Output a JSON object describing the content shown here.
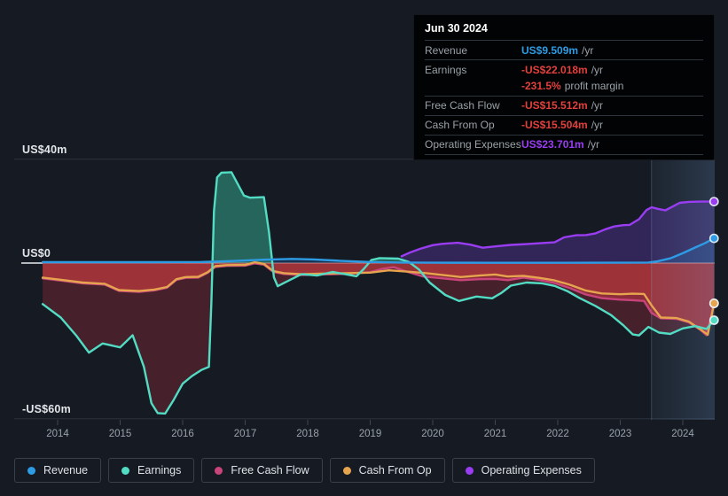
{
  "colors": {
    "revenue": "#2e9ce5",
    "earnings": "#52dcc4",
    "free_cash_flow": "#c8447a",
    "cash_from_op": "#e6a44f",
    "operating_expenses": "#9a3df2",
    "negative": "#e2403d"
  },
  "tooltip": {
    "date": "Jun 30 2024",
    "rows": [
      {
        "label": "Revenue",
        "value": "US$9.509m",
        "suffix": "/yr"
      },
      {
        "label": "Earnings",
        "value": "-US$22.018m",
        "suffix": "/yr"
      },
      {
        "label": "",
        "value": "-231.5%",
        "suffix": "profit margin"
      },
      {
        "label": "Free Cash Flow",
        "value": "-US$15.512m",
        "suffix": "/yr"
      },
      {
        "label": "Cash From Op",
        "value": "-US$15.504m",
        "suffix": "/yr"
      },
      {
        "label": "Operating Expenses",
        "value": "US$23.701m",
        "suffix": "/yr"
      }
    ]
  },
  "legend": {
    "items": [
      {
        "label": "Revenue",
        "color_key": "revenue"
      },
      {
        "label": "Earnings",
        "color_key": "earnings"
      },
      {
        "label": "Free Cash Flow",
        "color_key": "free_cash_flow"
      },
      {
        "label": "Cash From Op",
        "color_key": "cash_from_op"
      },
      {
        "label": "Operating Expenses",
        "color_key": "operating_expenses"
      }
    ]
  },
  "chart_data": {
    "type": "line",
    "unit": "US$ millions per year",
    "x_range": [
      2013.76,
      2024.5
    ],
    "y_range": [
      -60,
      40
    ],
    "x_ticks": [
      2014,
      2015,
      2016,
      2017,
      2018,
      2019,
      2020,
      2021,
      2022,
      2023,
      2024
    ],
    "y_gridlines": [
      {
        "label": "US$40m",
        "value": 40
      },
      {
        "label": "US$0",
        "value": 0
      },
      {
        "label": "-US$60m",
        "value": -60
      }
    ],
    "highlight_band": {
      "from": 2023.5,
      "to": 2024.55
    },
    "fill_order": [
      "operating_expenses",
      "revenue",
      "earnings",
      "free_cash_flow",
      "cash_from_op"
    ],
    "stroke_order": [
      "free_cash_flow",
      "cash_from_op",
      "earnings",
      "operating_expenses",
      "revenue"
    ],
    "end_markers": [
      "free_cash_flow",
      "cash_from_op",
      "earnings",
      "operating_expenses",
      "revenue"
    ],
    "series": [
      {
        "id": "revenue",
        "name": "Revenue",
        "color_key": "revenue",
        "fill_above": "rgba(32,84,146,0.42)",
        "fill_below": null,
        "points": [
          [
            2013.76,
            0.35
          ],
          [
            2014.5,
            0.35
          ],
          [
            2015.5,
            0.35
          ],
          [
            2016.3,
            0.4
          ],
          [
            2016.8,
            0.8
          ],
          [
            2017.3,
            1.3
          ],
          [
            2017.75,
            1.6
          ],
          [
            2018.1,
            1.4
          ],
          [
            2018.5,
            0.9
          ],
          [
            2019.0,
            0.4
          ],
          [
            2019.5,
            0.2
          ],
          [
            2020.0,
            0.12
          ],
          [
            2021.0,
            0.1
          ],
          [
            2022.0,
            0.1
          ],
          [
            2023.0,
            0.12
          ],
          [
            2023.45,
            0.2
          ],
          [
            2023.6,
            0.7
          ],
          [
            2023.8,
            1.8
          ],
          [
            2024.0,
            3.8
          ],
          [
            2024.2,
            6.0
          ],
          [
            2024.35,
            7.6
          ],
          [
            2024.5,
            9.509
          ]
        ]
      },
      {
        "id": "earnings",
        "name": "Earnings",
        "color_key": "earnings",
        "fill_above": "rgba(38,104,94,0.96)",
        "fill_below": "rgba(85,34,46,0.78)",
        "points": [
          [
            2013.76,
            -15.8
          ],
          [
            2014.05,
            -21
          ],
          [
            2014.3,
            -28
          ],
          [
            2014.5,
            -34.5
          ],
          [
            2014.72,
            -31
          ],
          [
            2015.0,
            -32.5
          ],
          [
            2015.2,
            -27.8
          ],
          [
            2015.38,
            -40
          ],
          [
            2015.5,
            -54
          ],
          [
            2015.6,
            -57.8
          ],
          [
            2015.72,
            -58
          ],
          [
            2015.85,
            -53
          ],
          [
            2016.0,
            -46.5
          ],
          [
            2016.15,
            -43.5
          ],
          [
            2016.3,
            -41.2
          ],
          [
            2016.42,
            -40
          ],
          [
            2016.46,
            -15
          ],
          [
            2016.5,
            20
          ],
          [
            2016.55,
            33
          ],
          [
            2016.62,
            34.8
          ],
          [
            2016.78,
            35
          ],
          [
            2016.88,
            30.5
          ],
          [
            2016.98,
            26
          ],
          [
            2017.08,
            25.2
          ],
          [
            2017.3,
            25.4
          ],
          [
            2017.38,
            12
          ],
          [
            2017.46,
            -5.5
          ],
          [
            2017.52,
            -8.9
          ],
          [
            2017.65,
            -7.3
          ],
          [
            2017.9,
            -4.3
          ],
          [
            2018.15,
            -4.8
          ],
          [
            2018.4,
            -3.4
          ],
          [
            2018.6,
            -4.3
          ],
          [
            2018.78,
            -5.1
          ],
          [
            2018.9,
            -2.2
          ],
          [
            2019.02,
            1.2
          ],
          [
            2019.15,
            1.9
          ],
          [
            2019.45,
            1.7
          ],
          [
            2019.62,
            0.4
          ],
          [
            2019.78,
            -2.5
          ],
          [
            2019.95,
            -7.5
          ],
          [
            2020.2,
            -12.3
          ],
          [
            2020.42,
            -14.6
          ],
          [
            2020.7,
            -12.9
          ],
          [
            2020.95,
            -13.6
          ],
          [
            2021.1,
            -11.5
          ],
          [
            2021.25,
            -8.7
          ],
          [
            2021.5,
            -7.5
          ],
          [
            2021.75,
            -7.8
          ],
          [
            2021.95,
            -8.8
          ],
          [
            2022.15,
            -10.8
          ],
          [
            2022.35,
            -13.5
          ],
          [
            2022.6,
            -16.5
          ],
          [
            2022.85,
            -20
          ],
          [
            2023.05,
            -24
          ],
          [
            2023.2,
            -27.5
          ],
          [
            2023.3,
            -27.9
          ],
          [
            2023.45,
            -24.6
          ],
          [
            2023.62,
            -26.8
          ],
          [
            2023.8,
            -27.3
          ],
          [
            2024.0,
            -25.2
          ],
          [
            2024.2,
            -24.3
          ],
          [
            2024.38,
            -25.4
          ],
          [
            2024.5,
            -22.018
          ]
        ]
      },
      {
        "id": "free_cash_flow",
        "name": "Free Cash Flow",
        "color_key": "free_cash_flow",
        "fill_above": null,
        "fill_below": "rgba(168,50,62,0.72)",
        "points": [
          [
            2013.76,
            -5.9
          ],
          [
            2014.1,
            -6.9
          ],
          [
            2014.4,
            -7.8
          ],
          [
            2014.75,
            -8.3
          ],
          [
            2014.98,
            -10.7
          ],
          [
            2015.3,
            -11.1
          ],
          [
            2015.55,
            -10.5
          ],
          [
            2015.75,
            -9.5
          ],
          [
            2015.9,
            -6.5
          ],
          [
            2016.05,
            -5.7
          ],
          [
            2016.25,
            -5.6
          ],
          [
            2016.4,
            -3.8
          ],
          [
            2016.52,
            -1.5
          ],
          [
            2016.7,
            -1.1
          ],
          [
            2017.0,
            -1.0
          ],
          [
            2017.15,
            -0.1
          ],
          [
            2017.3,
            -0.6
          ],
          [
            2017.45,
            -3.4
          ],
          [
            2017.62,
            -4.2
          ],
          [
            2017.9,
            -4.6
          ],
          [
            2018.2,
            -4.4
          ],
          [
            2018.6,
            -4.2
          ],
          [
            2019.0,
            -3.5
          ],
          [
            2019.2,
            -2.2
          ],
          [
            2019.38,
            -1.6
          ],
          [
            2019.6,
            -3.4
          ],
          [
            2019.85,
            -5.2
          ],
          [
            2020.2,
            -6.0
          ],
          [
            2020.45,
            -6.6
          ],
          [
            2020.75,
            -6.2
          ],
          [
            2021.0,
            -6.1
          ],
          [
            2021.2,
            -6.6
          ],
          [
            2021.45,
            -5.6
          ],
          [
            2021.7,
            -6.5
          ],
          [
            2021.95,
            -7.7
          ],
          [
            2022.2,
            -9.7
          ],
          [
            2022.45,
            -12.1
          ],
          [
            2022.7,
            -13.5
          ],
          [
            2023.0,
            -14.1
          ],
          [
            2023.2,
            -14.3
          ],
          [
            2023.38,
            -14.6
          ],
          [
            2023.5,
            -19.2
          ],
          [
            2023.65,
            -21.3
          ],
          [
            2023.9,
            -21.5
          ],
          [
            2024.1,
            -22.9
          ],
          [
            2024.28,
            -25.7
          ],
          [
            2024.38,
            -27.8
          ],
          [
            2024.5,
            -15.512
          ]
        ]
      },
      {
        "id": "cash_from_op",
        "name": "Cash From Op",
        "color_key": "cash_from_op",
        "fill_above": null,
        "fill_below": "rgba(190,62,60,0.34)",
        "points": [
          [
            2013.76,
            -5.6
          ],
          [
            2014.1,
            -6.6
          ],
          [
            2014.4,
            -7.5
          ],
          [
            2014.75,
            -8.0
          ],
          [
            2014.98,
            -10.4
          ],
          [
            2015.3,
            -10.8
          ],
          [
            2015.55,
            -10.2
          ],
          [
            2015.75,
            -9.2
          ],
          [
            2015.9,
            -6.2
          ],
          [
            2016.05,
            -5.4
          ],
          [
            2016.25,
            -5.3
          ],
          [
            2016.4,
            -3.5
          ],
          [
            2016.52,
            -1.2
          ],
          [
            2016.7,
            -0.8
          ],
          [
            2017.0,
            -0.7
          ],
          [
            2017.15,
            0.3
          ],
          [
            2017.3,
            -0.3
          ],
          [
            2017.45,
            -3.1
          ],
          [
            2017.62,
            -3.9
          ],
          [
            2017.9,
            -4.3
          ],
          [
            2018.2,
            -4.1
          ],
          [
            2018.6,
            -3.9
          ],
          [
            2019.0,
            -3.7
          ],
          [
            2019.3,
            -2.8
          ],
          [
            2019.6,
            -3.3
          ],
          [
            2019.9,
            -3.9
          ],
          [
            2020.2,
            -4.7
          ],
          [
            2020.45,
            -5.4
          ],
          [
            2020.75,
            -4.8
          ],
          [
            2021.0,
            -4.4
          ],
          [
            2021.2,
            -5.2
          ],
          [
            2021.45,
            -4.9
          ],
          [
            2021.7,
            -5.7
          ],
          [
            2021.95,
            -6.7
          ],
          [
            2022.2,
            -8.4
          ],
          [
            2022.45,
            -10.6
          ],
          [
            2022.7,
            -11.7
          ],
          [
            2023.0,
            -12.0
          ],
          [
            2023.2,
            -11.8
          ],
          [
            2023.38,
            -11.9
          ],
          [
            2023.5,
            -16.3
          ],
          [
            2023.65,
            -21.0
          ],
          [
            2023.9,
            -21.2
          ],
          [
            2024.1,
            -22.6
          ],
          [
            2024.28,
            -25.5
          ],
          [
            2024.4,
            -27.6
          ],
          [
            2024.5,
            -15.504
          ]
        ]
      },
      {
        "id": "operating_expenses",
        "name": "Operating Expenses",
        "color_key": "operating_expenses",
        "fill_above": "rgba(84,52,150,0.45)",
        "fill_below": null,
        "points": [
          [
            2019.5,
            2.6
          ],
          [
            2019.65,
            4.2
          ],
          [
            2019.8,
            5.5
          ],
          [
            2020.0,
            6.9
          ],
          [
            2020.15,
            7.4
          ],
          [
            2020.4,
            7.8
          ],
          [
            2020.6,
            7.1
          ],
          [
            2020.8,
            5.9
          ],
          [
            2021.0,
            6.4
          ],
          [
            2021.25,
            7.0
          ],
          [
            2021.5,
            7.3
          ],
          [
            2021.75,
            7.7
          ],
          [
            2021.95,
            8.0
          ],
          [
            2022.1,
            9.9
          ],
          [
            2022.3,
            10.7
          ],
          [
            2022.45,
            10.8
          ],
          [
            2022.6,
            11.4
          ],
          [
            2022.75,
            12.9
          ],
          [
            2022.9,
            14.1
          ],
          [
            2023.05,
            14.6
          ],
          [
            2023.15,
            14.7
          ],
          [
            2023.3,
            16.9
          ],
          [
            2023.42,
            20.4
          ],
          [
            2023.5,
            21.5
          ],
          [
            2023.6,
            20.9
          ],
          [
            2023.72,
            20.3
          ],
          [
            2023.85,
            21.9
          ],
          [
            2023.95,
            23.2
          ],
          [
            2024.1,
            23.6
          ],
          [
            2024.3,
            23.7
          ],
          [
            2024.5,
            23.701
          ]
        ]
      }
    ]
  }
}
